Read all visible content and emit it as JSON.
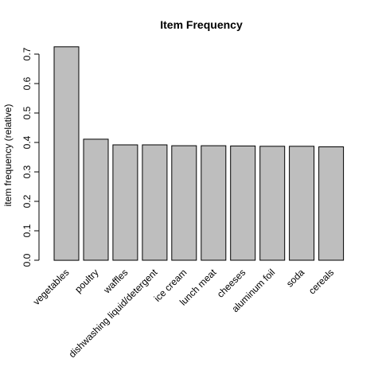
{
  "chart_data": {
    "type": "bar",
    "title": "Item Frequency",
    "xlabel": "",
    "ylabel": "item frequency (relative)",
    "categories": [
      "vegetables",
      "poultry",
      "waffles",
      "dishwashing liquid/detergent",
      "ice cream",
      "lunch meat",
      "cheeses",
      "aluminum foil",
      "soda",
      "cereals"
    ],
    "values": [
      0.725,
      0.411,
      0.392,
      0.392,
      0.389,
      0.389,
      0.388,
      0.387,
      0.387,
      0.385
    ],
    "ylim": [
      0,
      0.7
    ],
    "yticks": [
      "0.0",
      "0.1",
      "0.2",
      "0.3",
      "0.4",
      "0.5",
      "0.6",
      "0.7"
    ],
    "grid": false,
    "legend": "none",
    "bar_color": "#bebebe",
    "border_color": "#000000"
  }
}
